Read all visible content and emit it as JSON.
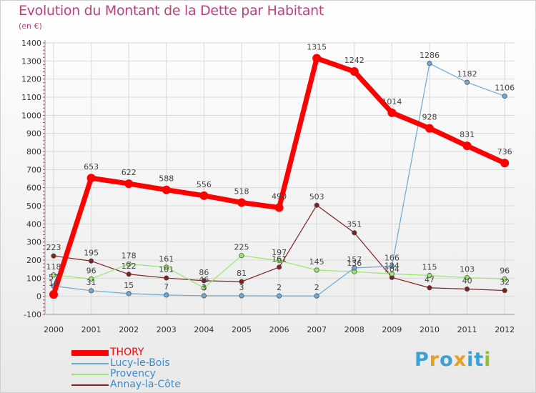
{
  "chart_data": {
    "type": "line",
    "title": "Evolution du Montant de la Dette par Habitant",
    "subtitle": "(en €)",
    "xlabel": "",
    "ylabel": "",
    "ylim": [
      -100,
      1400
    ],
    "yticks": [
      "-100",
      "0",
      "100",
      "200",
      "300",
      "400",
      "500",
      "600",
      "700",
      "800",
      "900",
      "1000",
      "1100",
      "1200",
      "1300",
      "1400"
    ],
    "categories": [
      "2000",
      "2001",
      "2002",
      "2003",
      "2004",
      "2005",
      "2006",
      "2007",
      "2008",
      "2009",
      "2010",
      "2011",
      "2012"
    ],
    "series": [
      {
        "name": "THORY",
        "color": "#ff0000",
        "values": [
          10,
          653,
          622,
          588,
          556,
          518,
          490,
          1315,
          1242,
          1014,
          928,
          831,
          736
        ],
        "labels": [
          "10",
          "653",
          "622",
          "588",
          "556",
          "518",
          "490",
          "1315",
          "1242",
          "1014",
          "928",
          "831",
          "736"
        ]
      },
      {
        "name": "Lucy-le-Bois",
        "color": "#6aaad8",
        "values": [
          57,
          31,
          15,
          7,
          3,
          3,
          2,
          2,
          157,
          166,
          1286,
          1182,
          1106
        ],
        "labels": [
          "57",
          "31",
          "15",
          "7",
          "3",
          "3",
          "2",
          "2",
          "157",
          "166",
          "1286",
          "1182",
          "1106"
        ]
      },
      {
        "name": "Provency",
        "color": "#99e86a",
        "values": [
          118,
          96,
          178,
          161,
          46,
          225,
          197,
          145,
          136,
          124,
          115,
          103,
          96
        ],
        "labels": [
          "118",
          "96",
          "178",
          "161",
          "46",
          "225",
          "197",
          "145",
          "136",
          "124",
          "115",
          "103",
          "96"
        ]
      },
      {
        "name": "Annay-la-Côte",
        "color": "#802020",
        "values": [
          223,
          195,
          122,
          101,
          86,
          81,
          161,
          503,
          351,
          104,
          47,
          40,
          32
        ],
        "labels": [
          "223",
          "195",
          "122",
          "101",
          "86",
          "81",
          "161",
          "503",
          "351",
          "104",
          "47",
          "40",
          "32"
        ]
      }
    ],
    "legend_position": "bottom-left"
  },
  "logo": {
    "text": "Proxiti",
    "letter_colors": [
      "#3aa0d8",
      "#e8a020",
      "#3aa0d8",
      "#e8a020",
      "#3aa0d8",
      "#3aa0d8",
      "#90c030"
    ]
  }
}
